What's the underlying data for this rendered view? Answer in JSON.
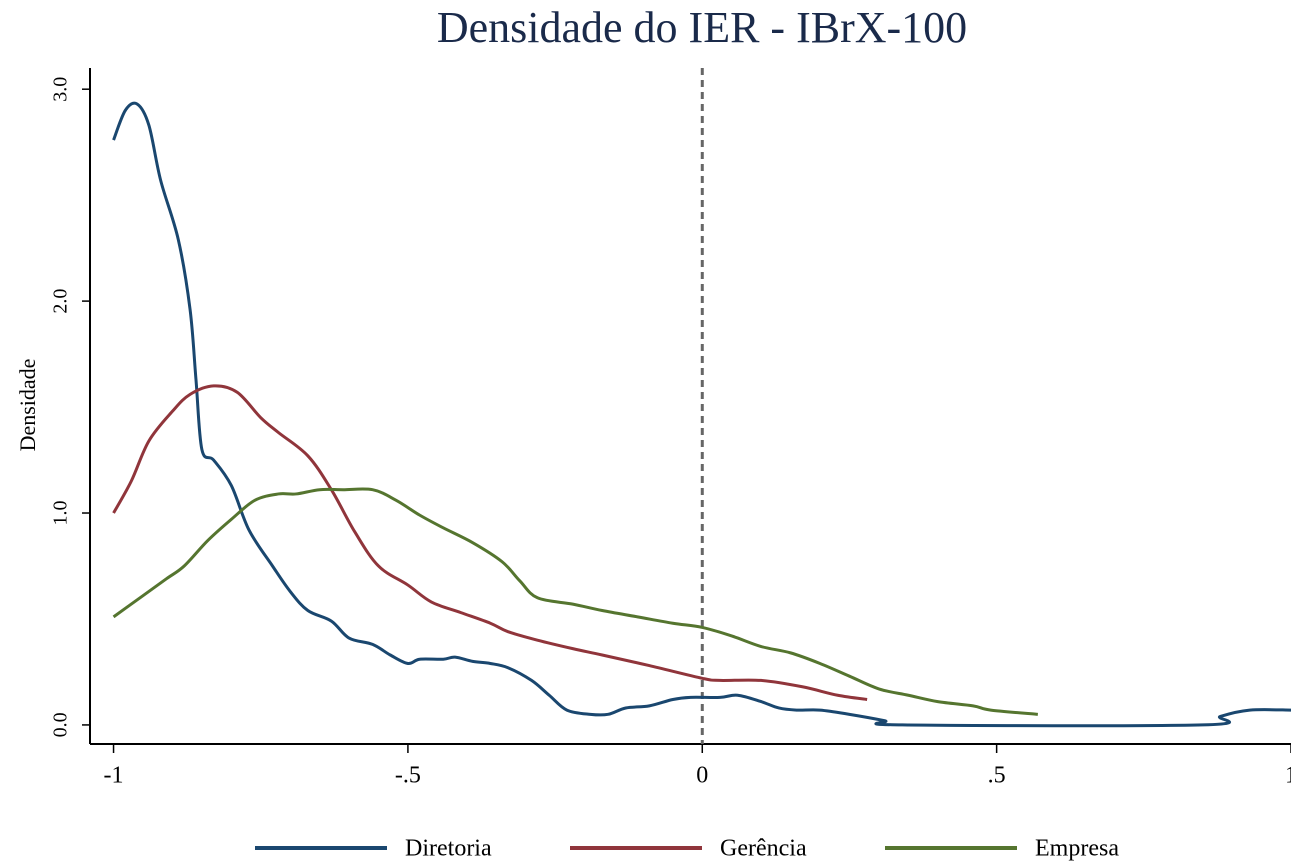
{
  "chart_data": {
    "type": "line",
    "title": "Densidade do IER - IBrX-100",
    "ylabel": "Densidade",
    "xlim": [
      -1.04,
      1.0
    ],
    "ylim": [
      -0.09,
      3.1
    ],
    "xticks": [
      -1,
      {
        "value": -0.5,
        "label": "-.5"
      },
      0,
      {
        "value": 0.5,
        "label": ".5"
      },
      1
    ],
    "yticks": [
      {
        "value": 0,
        "label": "0.0"
      },
      {
        "value": 1,
        "label": "1.0"
      },
      {
        "value": 2,
        "label": "2.0"
      },
      {
        "value": 3,
        "label": "3.0"
      }
    ],
    "xline": 0,
    "grid": false,
    "legend": "bottom",
    "series": [
      {
        "name": "Diretoria",
        "color": "#1a476f",
        "x": [
          -1.0,
          -0.98,
          -0.96,
          -0.94,
          -0.92,
          -0.89,
          -0.87,
          -0.86,
          -0.85,
          -0.83,
          -0.8,
          -0.77,
          -0.73,
          -0.7,
          -0.67,
          -0.63,
          -0.6,
          -0.56,
          -0.53,
          -0.5,
          -0.48,
          -0.44,
          -0.42,
          -0.39,
          -0.36,
          -0.33,
          -0.29,
          -0.26,
          -0.23,
          -0.19,
          -0.16,
          -0.13,
          -0.09,
          -0.05,
          -0.02,
          0.03,
          0.06,
          0.1,
          0.13,
          0.16,
          0.2,
          0.25,
          0.31,
          0.34,
          0.85,
          0.88,
          0.93,
          1.0
        ],
        "values": [
          2.76,
          2.9,
          2.93,
          2.83,
          2.57,
          2.29,
          1.96,
          1.63,
          1.3,
          1.25,
          1.13,
          0.92,
          0.75,
          0.63,
          0.54,
          0.49,
          0.41,
          0.38,
          0.33,
          0.29,
          0.31,
          0.31,
          0.32,
          0.3,
          0.29,
          0.27,
          0.21,
          0.14,
          0.07,
          0.05,
          0.05,
          0.08,
          0.09,
          0.12,
          0.13,
          0.13,
          0.14,
          0.11,
          0.08,
          0.07,
          0.07,
          0.05,
          0.02,
          0.0,
          0.0,
          0.04,
          0.07,
          0.07
        ]
      },
      {
        "name": "Gerência",
        "color": "#90353b",
        "x": [
          -1.0,
          -0.97,
          -0.94,
          -0.9,
          -0.87,
          -0.83,
          -0.79,
          -0.75,
          -0.72,
          -0.67,
          -0.63,
          -0.59,
          -0.55,
          -0.5,
          -0.46,
          -0.41,
          -0.36,
          -0.33,
          -0.28,
          -0.22,
          -0.17,
          -0.09,
          0.0,
          0.03,
          0.1,
          0.17,
          0.23,
          0.28
        ],
        "values": [
          1.0,
          1.15,
          1.34,
          1.48,
          1.56,
          1.6,
          1.57,
          1.45,
          1.38,
          1.27,
          1.11,
          0.91,
          0.75,
          0.66,
          0.58,
          0.53,
          0.48,
          0.44,
          0.4,
          0.36,
          0.33,
          0.28,
          0.22,
          0.21,
          0.21,
          0.18,
          0.14,
          0.12
        ]
      },
      {
        "name": "Empresa",
        "color": "#55752f",
        "x": [
          -1.0,
          -0.95,
          -0.91,
          -0.88,
          -0.84,
          -0.8,
          -0.76,
          -0.72,
          -0.69,
          -0.65,
          -0.61,
          -0.56,
          -0.52,
          -0.48,
          -0.44,
          -0.39,
          -0.34,
          -0.31,
          -0.28,
          -0.22,
          -0.17,
          -0.11,
          -0.05,
          0.0,
          0.05,
          0.1,
          0.15,
          0.2,
          0.25,
          0.3,
          0.35,
          0.4,
          0.46,
          0.49,
          0.57
        ],
        "values": [
          0.51,
          0.61,
          0.69,
          0.75,
          0.87,
          0.97,
          1.06,
          1.09,
          1.09,
          1.11,
          1.11,
          1.11,
          1.06,
          0.99,
          0.93,
          0.86,
          0.77,
          0.68,
          0.6,
          0.57,
          0.54,
          0.51,
          0.48,
          0.46,
          0.42,
          0.37,
          0.34,
          0.29,
          0.23,
          0.17,
          0.14,
          0.11,
          0.09,
          0.07,
          0.05
        ]
      }
    ]
  }
}
